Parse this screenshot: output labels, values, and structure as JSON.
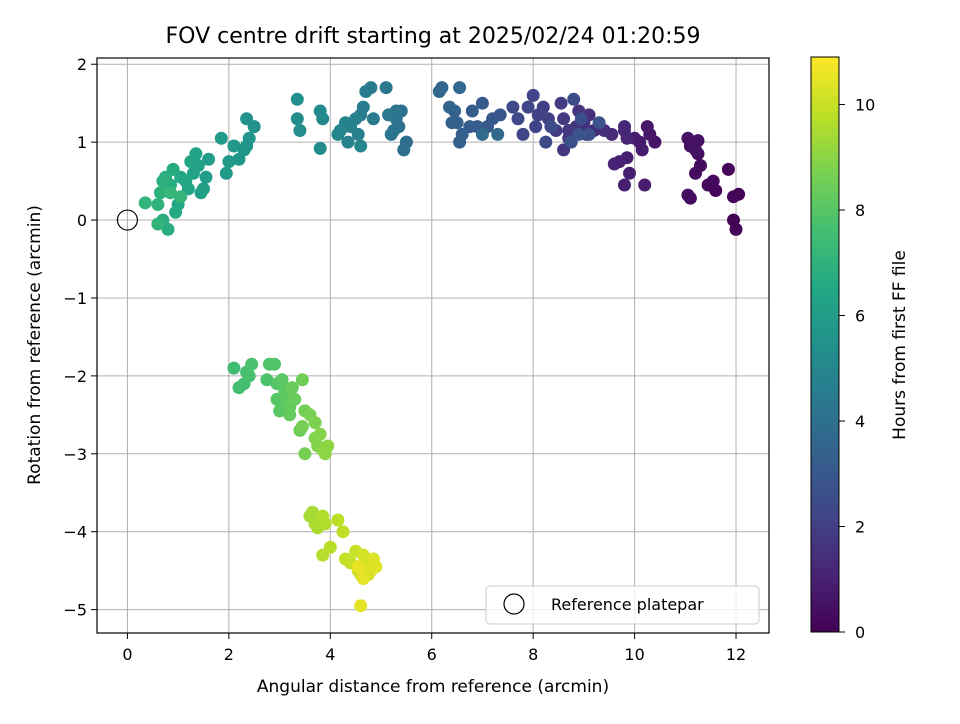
{
  "chart_data": {
    "type": "scatter",
    "title": "FOV centre drift starting at 2025/02/24 01:20:59",
    "xlabel": "Angular distance from reference (arcmin)",
    "ylabel": "Rotation from reference (arcmin)",
    "xlim": [
      -0.6,
      12.65
    ],
    "ylim": [
      -5.3,
      2.08
    ],
    "xticks": [
      0,
      2,
      4,
      6,
      8,
      10,
      12
    ],
    "xtick_labels": [
      "0",
      "2",
      "4",
      "6",
      "8",
      "10",
      "12"
    ],
    "yticks": [
      -5,
      -4,
      -3,
      -2,
      -1,
      0,
      1,
      2
    ],
    "ytick_labels": [
      "−5",
      "−4",
      "−3",
      "−2",
      "−1",
      "0",
      "1",
      "2"
    ],
    "grid": true,
    "colorbar": {
      "label": "Hours from first FF file",
      "colormap": "viridis",
      "range": [
        0,
        10.9
      ],
      "ticks": [
        0,
        2,
        4,
        6,
        8,
        10
      ],
      "tick_labels": [
        "0",
        "2",
        "4",
        "6",
        "8",
        "10"
      ]
    },
    "legend": {
      "placement": "lower-right",
      "entries": [
        {
          "label": "Reference platepar",
          "marker": "open-circle"
        }
      ]
    },
    "reference_point": {
      "x": 0,
      "y": 0
    },
    "points": [
      [
        12.0,
        -0.12,
        0.05
      ],
      [
        11.95,
        0.0,
        0.08
      ],
      [
        12.05,
        0.33,
        0.1
      ],
      [
        11.95,
        0.3,
        0.12
      ],
      [
        11.85,
        0.65,
        0.15
      ],
      [
        11.6,
        0.38,
        0.2
      ],
      [
        11.55,
        0.5,
        0.22
      ],
      [
        11.45,
        0.45,
        0.25
      ],
      [
        11.3,
        0.7,
        0.3
      ],
      [
        11.2,
        0.6,
        0.32
      ],
      [
        11.1,
        0.28,
        0.35
      ],
      [
        11.05,
        0.32,
        0.38
      ],
      [
        11.25,
        0.85,
        0.4
      ],
      [
        11.2,
        1.0,
        0.42
      ],
      [
        11.1,
        0.95,
        0.45
      ],
      [
        11.05,
        1.05,
        0.48
      ],
      [
        11.25,
        1.02,
        0.5
      ],
      [
        11.2,
        0.9,
        0.52
      ],
      [
        10.4,
        1.0,
        0.6
      ],
      [
        10.3,
        1.1,
        0.65
      ],
      [
        10.25,
        1.2,
        0.7
      ],
      [
        10.1,
        1.0,
        0.75
      ],
      [
        10.0,
        1.05,
        0.8
      ],
      [
        10.15,
        0.9,
        0.82
      ],
      [
        10.2,
        0.45,
        0.85
      ],
      [
        9.9,
        0.6,
        0.9
      ],
      [
        9.85,
        0.8,
        0.92
      ],
      [
        9.8,
        0.45,
        0.95
      ],
      [
        9.7,
        0.75,
        1.0
      ],
      [
        9.6,
        0.72,
        1.05
      ],
      [
        9.8,
        1.15,
        1.1
      ],
      [
        9.85,
        1.05,
        1.15
      ],
      [
        9.8,
        1.2,
        1.2
      ],
      [
        9.55,
        1.1,
        1.3
      ],
      [
        9.4,
        1.15,
        1.35
      ],
      [
        9.2,
        1.15,
        1.4
      ],
      [
        9.1,
        1.35,
        1.45
      ],
      [
        9.0,
        1.25,
        1.5
      ],
      [
        9.05,
        1.1,
        1.55
      ],
      [
        8.9,
        1.4,
        1.6
      ],
      [
        8.85,
        1.2,
        1.65
      ],
      [
        8.7,
        1.15,
        1.7
      ],
      [
        8.6,
        0.9,
        1.75
      ],
      [
        8.7,
        1.05,
        1.8
      ],
      [
        8.6,
        1.3,
        1.85
      ],
      [
        8.55,
        1.5,
        1.9
      ],
      [
        8.45,
        1.15,
        1.95
      ],
      [
        8.3,
        1.3,
        2.0
      ],
      [
        8.2,
        1.45,
        2.05
      ],
      [
        8.1,
        1.35,
        2.1
      ],
      [
        8.05,
        1.2,
        2.15
      ],
      [
        8.0,
        1.6,
        2.2
      ],
      [
        7.9,
        1.45,
        2.25
      ],
      [
        7.8,
        1.1,
        2.3
      ],
      [
        7.7,
        1.3,
        2.35
      ],
      [
        7.6,
        1.45,
        2.4
      ],
      [
        8.25,
        1.0,
        2.45
      ],
      [
        8.35,
        1.2,
        2.5
      ],
      [
        8.8,
        1.55,
        2.55
      ],
      [
        8.95,
        1.3,
        2.6
      ],
      [
        9.1,
        1.1,
        2.65
      ],
      [
        8.75,
        1.0,
        2.7
      ],
      [
        9.3,
        1.25,
        2.75
      ],
      [
        8.9,
        1.1,
        2.8
      ],
      [
        7.35,
        1.35,
        2.9
      ],
      [
        7.2,
        1.3,
        2.95
      ],
      [
        7.1,
        1.2,
        3.0
      ],
      [
        7.0,
        1.5,
        3.05
      ],
      [
        6.9,
        1.2,
        3.1
      ],
      [
        6.8,
        1.4,
        3.15
      ],
      [
        6.75,
        1.2,
        3.2
      ],
      [
        6.6,
        1.1,
        3.25
      ],
      [
        6.55,
        1.0,
        3.3
      ],
      [
        6.5,
        1.25,
        3.35
      ],
      [
        6.45,
        1.4,
        3.4
      ],
      [
        6.4,
        1.25,
        3.45
      ],
      [
        6.35,
        1.45,
        3.5
      ],
      [
        6.2,
        1.7,
        3.55
      ],
      [
        6.15,
        1.65,
        3.6
      ],
      [
        6.55,
        1.7,
        3.65
      ],
      [
        7.3,
        1.1,
        3.7
      ],
      [
        7.0,
        1.1,
        3.75
      ],
      [
        5.5,
        1.0,
        3.9
      ],
      [
        5.45,
        0.9,
        3.95
      ],
      [
        5.4,
        1.4,
        4.0
      ],
      [
        5.35,
        1.2,
        4.05
      ],
      [
        5.3,
        1.3,
        4.1
      ],
      [
        5.25,
        1.15,
        4.15
      ],
      [
        5.2,
        1.1,
        4.2
      ],
      [
        5.3,
        1.4,
        4.25
      ],
      [
        5.15,
        1.35,
        4.3
      ],
      [
        5.1,
        1.7,
        4.35
      ],
      [
        4.85,
        1.3,
        4.4
      ],
      [
        4.8,
        1.7,
        4.45
      ],
      [
        4.7,
        1.65,
        4.5
      ],
      [
        4.65,
        1.45,
        4.55
      ],
      [
        4.6,
        1.35,
        4.6
      ],
      [
        4.55,
        1.1,
        4.65
      ],
      [
        4.5,
        1.3,
        4.7
      ],
      [
        4.4,
        1.2,
        4.75
      ],
      [
        4.35,
        1.0,
        4.8
      ],
      [
        4.3,
        1.25,
        4.85
      ],
      [
        4.2,
        1.15,
        4.9
      ],
      [
        4.15,
        1.1,
        4.95
      ],
      [
        4.6,
        0.95,
        5.0
      ],
      [
        3.85,
        1.3,
        5.1
      ],
      [
        3.8,
        1.4,
        5.15
      ],
      [
        3.8,
        0.92,
        5.2
      ],
      [
        3.4,
        1.15,
        5.25
      ],
      [
        3.35,
        1.3,
        5.3
      ],
      [
        3.35,
        1.55,
        5.35
      ],
      [
        2.5,
        1.2,
        5.5
      ],
      [
        2.35,
        1.3,
        5.55
      ],
      [
        2.4,
        1.05,
        5.6
      ],
      [
        2.35,
        0.95,
        5.65
      ],
      [
        2.3,
        0.9,
        5.7
      ],
      [
        2.2,
        0.78,
        5.75
      ],
      [
        2.1,
        0.95,
        5.8
      ],
      [
        2.0,
        0.75,
        5.85
      ],
      [
        1.95,
        0.6,
        5.9
      ],
      [
        1.85,
        1.05,
        5.95
      ],
      [
        1.6,
        0.78,
        6.0
      ],
      [
        1.55,
        0.55,
        6.05
      ],
      [
        1.5,
        0.4,
        6.1
      ],
      [
        1.45,
        0.35,
        6.15
      ],
      [
        1.4,
        0.7,
        6.2
      ],
      [
        1.35,
        0.85,
        6.25
      ],
      [
        1.3,
        0.6,
        6.3
      ],
      [
        1.25,
        0.75,
        6.35
      ],
      [
        1.2,
        0.4,
        6.4
      ],
      [
        1.15,
        0.5,
        6.45
      ],
      [
        1.05,
        0.55,
        6.5
      ],
      [
        1.0,
        0.2,
        6.55
      ],
      [
        0.95,
        0.1,
        6.6
      ],
      [
        0.9,
        0.65,
        6.65
      ],
      [
        0.85,
        0.45,
        6.7
      ],
      [
        0.8,
        -0.12,
        6.75
      ],
      [
        0.7,
        0.0,
        6.8
      ],
      [
        0.75,
        0.55,
        6.85
      ],
      [
        0.7,
        0.5,
        6.9
      ],
      [
        0.65,
        0.35,
        6.95
      ],
      [
        0.6,
        0.2,
        7.0
      ],
      [
        0.6,
        -0.05,
        7.05
      ],
      [
        0.35,
        0.22,
        7.1
      ],
      [
        1.05,
        0.3,
        7.15
      ],
      [
        0.85,
        0.35,
        7.2
      ],
      [
        2.1,
        -1.9,
        7.5
      ],
      [
        2.2,
        -2.15,
        7.55
      ],
      [
        2.3,
        -2.1,
        7.6
      ],
      [
        2.35,
        -1.95,
        7.65
      ],
      [
        2.4,
        -2.0,
        7.7
      ],
      [
        2.45,
        -1.85,
        7.75
      ],
      [
        2.75,
        -2.05,
        7.8
      ],
      [
        2.8,
        -1.85,
        7.85
      ],
      [
        2.9,
        -1.85,
        7.9
      ],
      [
        2.95,
        -2.1,
        7.95
      ],
      [
        2.95,
        -2.3,
        8.0
      ],
      [
        3.0,
        -2.45,
        8.05
      ],
      [
        3.05,
        -2.05,
        8.1
      ],
      [
        3.1,
        -2.2,
        8.15
      ],
      [
        3.15,
        -2.35,
        8.2
      ],
      [
        3.2,
        -2.4,
        8.25
      ],
      [
        3.2,
        -2.5,
        8.3
      ],
      [
        3.25,
        -2.15,
        8.35
      ],
      [
        3.3,
        -2.3,
        8.4
      ],
      [
        3.4,
        -2.7,
        8.45
      ],
      [
        3.45,
        -2.05,
        8.5
      ],
      [
        3.5,
        -2.45,
        8.55
      ],
      [
        3.45,
        -2.65,
        8.6
      ],
      [
        3.5,
        -3.0,
        8.65
      ],
      [
        3.6,
        -2.5,
        8.7
      ],
      [
        3.7,
        -2.6,
        8.75
      ],
      [
        3.7,
        -2.8,
        8.8
      ],
      [
        3.75,
        -2.9,
        8.85
      ],
      [
        3.8,
        -2.75,
        8.9
      ],
      [
        3.85,
        -2.95,
        8.95
      ],
      [
        3.9,
        -3.0,
        9.0
      ],
      [
        3.95,
        -2.9,
        9.05
      ],
      [
        3.6,
        -3.8,
        9.4
      ],
      [
        3.65,
        -3.75,
        9.45
      ],
      [
        3.7,
        -3.9,
        9.5
      ],
      [
        3.75,
        -3.95,
        9.55
      ],
      [
        3.85,
        -3.8,
        9.6
      ],
      [
        3.9,
        -3.9,
        9.65
      ],
      [
        3.85,
        -4.3,
        9.7
      ],
      [
        4.0,
        -4.2,
        9.75
      ],
      [
        4.15,
        -3.85,
        9.8
      ],
      [
        4.25,
        -4.0,
        9.85
      ],
      [
        4.3,
        -4.35,
        9.9
      ],
      [
        4.4,
        -4.4,
        9.95
      ],
      [
        4.5,
        -4.25,
        10.0
      ],
      [
        4.55,
        -4.5,
        10.05
      ],
      [
        4.6,
        -4.55,
        10.1
      ],
      [
        4.65,
        -4.3,
        10.15
      ],
      [
        4.7,
        -4.45,
        10.2
      ],
      [
        4.75,
        -4.55,
        10.25
      ],
      [
        4.8,
        -4.5,
        10.3
      ],
      [
        4.85,
        -4.35,
        10.35
      ],
      [
        4.9,
        -4.45,
        10.4
      ],
      [
        4.6,
        -4.95,
        10.45
      ],
      [
        4.65,
        -4.6,
        10.5
      ],
      [
        4.55,
        -4.45,
        10.55
      ]
    ]
  }
}
